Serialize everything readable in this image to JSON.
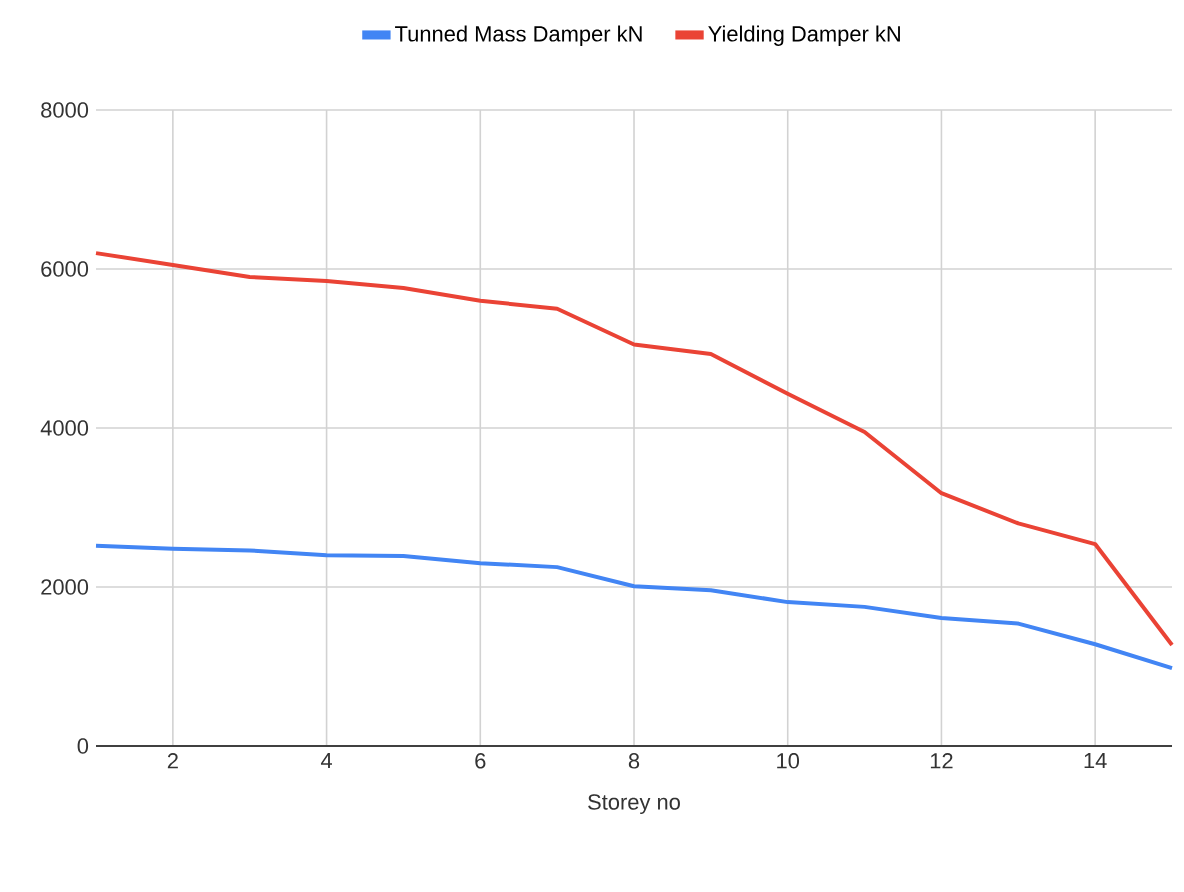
{
  "chart_data": {
    "type": "line",
    "xlabel": "Storey no",
    "x": [
      1,
      2,
      3,
      4,
      5,
      6,
      7,
      8,
      9,
      10,
      11,
      12,
      13,
      14,
      15
    ],
    "series": [
      {
        "name": "Tunned Mass Damper kN",
        "color": "#4285f4",
        "values": [
          2520,
          2480,
          2460,
          2400,
          2390,
          2300,
          2250,
          2010,
          1960,
          1810,
          1750,
          1610,
          1540,
          1280,
          980
        ]
      },
      {
        "name": "Yielding Damper kN",
        "color": "#ea4335",
        "values": [
          6200,
          6050,
          5900,
          5850,
          5760,
          5600,
          5500,
          5050,
          4930,
          4430,
          3950,
          3180,
          2800,
          2540,
          1270
        ]
      }
    ],
    "xlim": [
      1,
      15
    ],
    "xticks": [
      2,
      4,
      6,
      8,
      10,
      12,
      14
    ],
    "ylim": [
      0,
      8000
    ],
    "yticks": [
      0,
      2000,
      4000,
      6000,
      8000
    ],
    "grid": true,
    "legend": "top",
    "marker": "none",
    "line_style": "solid"
  }
}
